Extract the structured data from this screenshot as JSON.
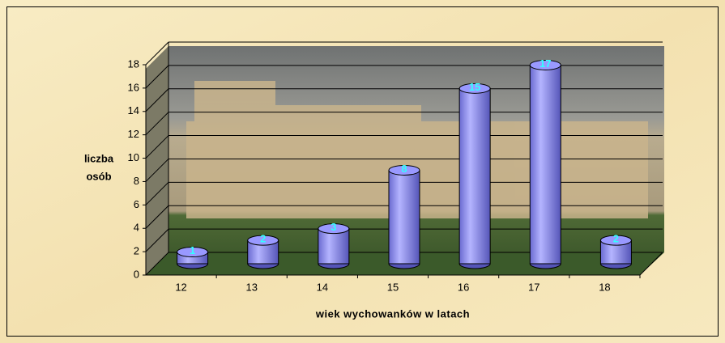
{
  "chart_data": {
    "type": "bar3d",
    "x_label": "wiek wychowanków w latach",
    "y_label": [
      "liczba",
      "osób"
    ],
    "categories": [
      "12",
      "13",
      "14",
      "15",
      "16",
      "17",
      "18"
    ],
    "values": [
      1,
      2,
      3,
      8,
      15,
      17,
      2
    ],
    "color": "#9999ff",
    "label_color": "#33ffff",
    "ylim": [
      0,
      18
    ],
    "yticks": [
      0,
      2,
      4,
      6,
      8,
      10,
      12,
      14,
      16,
      18
    ],
    "grid": true
  }
}
